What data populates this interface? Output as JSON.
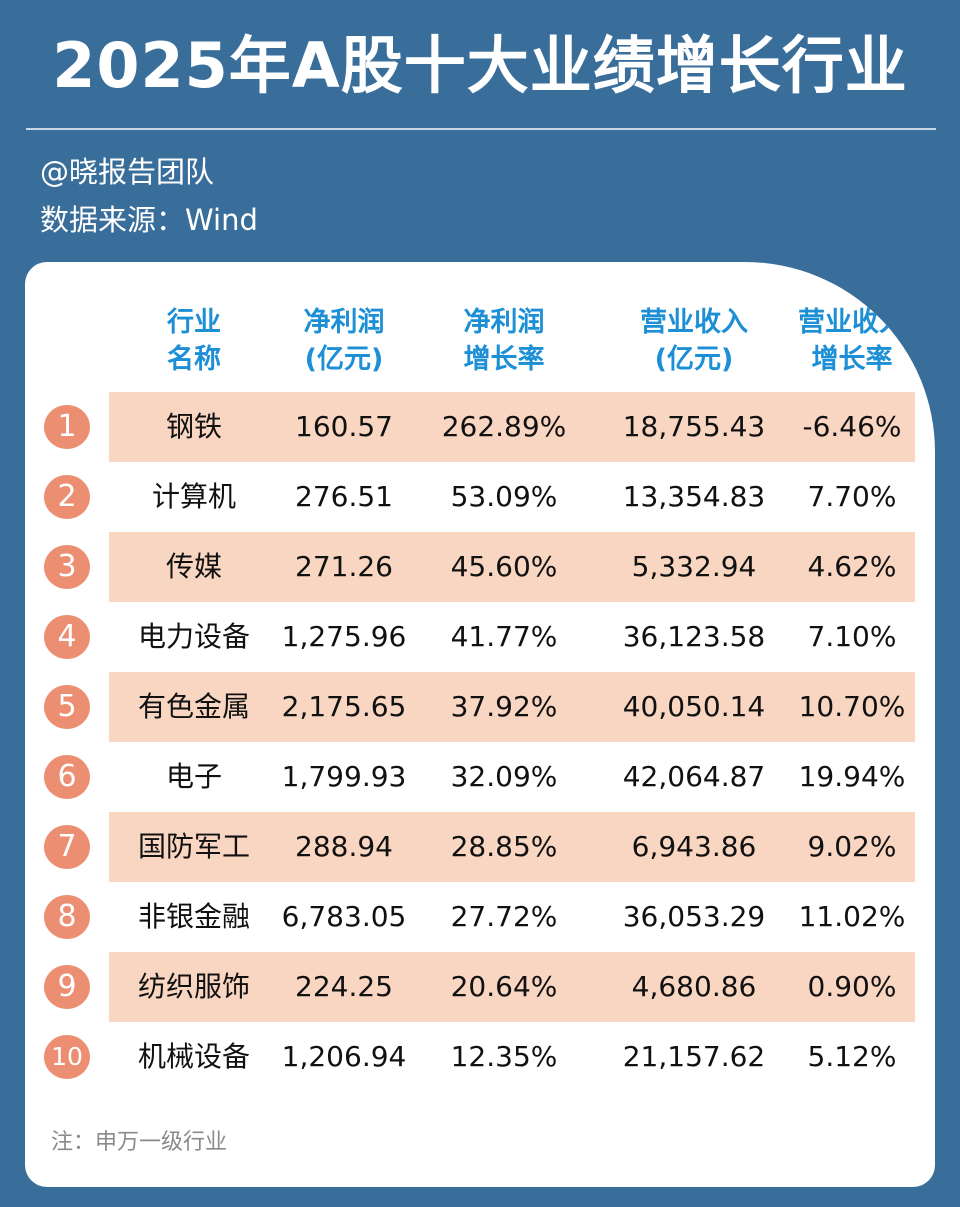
{
  "title": "2025年A股十大业绩增长行业",
  "author": "@晓报告团队",
  "source": "数据来源：Wind",
  "note": "注：申万一级行业",
  "colors": {
    "background": "#3a6e9a",
    "header_text": "#1c8fd6",
    "band": "#f9d6c1",
    "badge": "#ec8e72"
  },
  "table": {
    "headers": [
      {
        "line1": "行业",
        "line2": "名称"
      },
      {
        "line1": "净利润",
        "line2": "(亿元)"
      },
      {
        "line1": "净利润",
        "line2": "增长率"
      },
      {
        "line1": "营业收入",
        "line2": "(亿元)"
      },
      {
        "line1": "营业收入",
        "line2": "增长率"
      }
    ],
    "rows": [
      {
        "rank": "1",
        "name": "钢铁",
        "net_profit": "160.57",
        "net_profit_growth": "262.89%",
        "revenue": "18,755.43",
        "revenue_growth": "-6.46%"
      },
      {
        "rank": "2",
        "name": "计算机",
        "net_profit": "276.51",
        "net_profit_growth": "53.09%",
        "revenue": "13,354.83",
        "revenue_growth": "7.70%"
      },
      {
        "rank": "3",
        "name": "传媒",
        "net_profit": "271.26",
        "net_profit_growth": "45.60%",
        "revenue": "5,332.94",
        "revenue_growth": "4.62%"
      },
      {
        "rank": "4",
        "name": "电力设备",
        "net_profit": "1,275.96",
        "net_profit_growth": "41.77%",
        "revenue": "36,123.58",
        "revenue_growth": "7.10%"
      },
      {
        "rank": "5",
        "name": "有色金属",
        "net_profit": "2,175.65",
        "net_profit_growth": "37.92%",
        "revenue": "40,050.14",
        "revenue_growth": "10.70%"
      },
      {
        "rank": "6",
        "name": "电子",
        "net_profit": "1,799.93",
        "net_profit_growth": "32.09%",
        "revenue": "42,064.87",
        "revenue_growth": "19.94%"
      },
      {
        "rank": "7",
        "name": "国防军工",
        "net_profit": "288.94",
        "net_profit_growth": "28.85%",
        "revenue": "6,943.86",
        "revenue_growth": "9.02%"
      },
      {
        "rank": "8",
        "name": "非银金融",
        "net_profit": "6,783.05",
        "net_profit_growth": "27.72%",
        "revenue": "36,053.29",
        "revenue_growth": "11.02%"
      },
      {
        "rank": "9",
        "name": "纺织服饰",
        "net_profit": "224.25",
        "net_profit_growth": "20.64%",
        "revenue": "4,680.86",
        "revenue_growth": "0.90%"
      },
      {
        "rank": "10",
        "name": "机械设备",
        "net_profit": "1,206.94",
        "net_profit_growth": "12.35%",
        "revenue": "21,157.62",
        "revenue_growth": "5.12%"
      }
    ]
  }
}
